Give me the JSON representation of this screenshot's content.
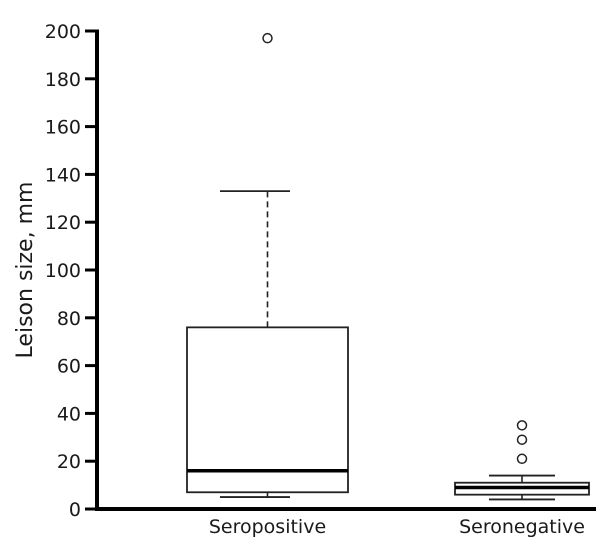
{
  "chart_data": {
    "type": "boxplot",
    "title": "",
    "xlabel": "",
    "ylabel": "Leison size, mm",
    "ylim": [
      0,
      200
    ],
    "yticks": [
      0,
      20,
      40,
      60,
      80,
      100,
      120,
      140,
      160,
      180,
      200
    ],
    "grid": false,
    "legend": null,
    "categories": [
      "Seropositive",
      "Seronegative"
    ],
    "series": [
      {
        "name": "Seropositive",
        "whisker_low": 5,
        "q1": 7,
        "median": 16,
        "q3": 76,
        "whisker_high": 133,
        "outliers": [
          197
        ]
      },
      {
        "name": "Seronegative",
        "whisker_low": 4,
        "q1": 6,
        "median": 9,
        "q3": 11,
        "whisker_high": 14,
        "outliers": [
          21,
          29,
          35
        ]
      }
    ]
  },
  "axis": {
    "ylabel": "Leison size, mm",
    "ytick_labels": [
      "0",
      "20",
      "40",
      "60",
      "80",
      "100",
      "120",
      "140",
      "160",
      "180",
      "200"
    ],
    "categories": [
      "Seropositive",
      "Seronegative"
    ]
  }
}
